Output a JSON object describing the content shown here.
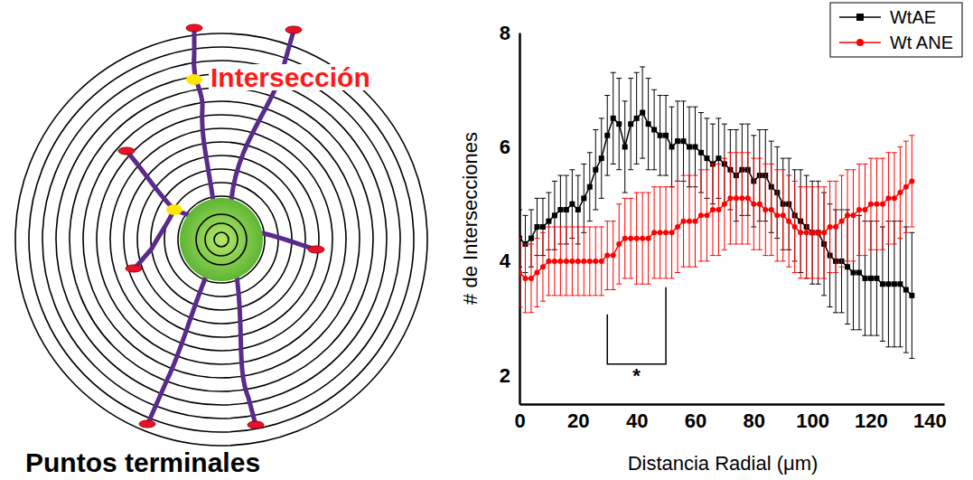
{
  "diagram": {
    "intersection_label": "Intersección",
    "endpoints_label": "Puntos terminales"
  },
  "chart_data": {
    "type": "line",
    "x_label": "Distancia Radial (μm)",
    "y_label": "# de Intersecciones",
    "xlim": [
      0,
      145
    ],
    "xticks": [
      0,
      20,
      40,
      60,
      80,
      100,
      120,
      140
    ],
    "ylim": [
      1.5,
      8
    ],
    "yticks": [
      2,
      4,
      6,
      8
    ],
    "grid": false,
    "legend": "top-right",
    "x": [
      0,
      2,
      4,
      6,
      8,
      10,
      12,
      14,
      16,
      18,
      20,
      22,
      24,
      26,
      28,
      30,
      32,
      34,
      36,
      38,
      40,
      42,
      44,
      46,
      48,
      50,
      52,
      54,
      56,
      58,
      60,
      62,
      64,
      66,
      68,
      70,
      72,
      74,
      76,
      78,
      80,
      82,
      84,
      86,
      88,
      90,
      92,
      94,
      96,
      98,
      100,
      102,
      104,
      106,
      108,
      110,
      112,
      114,
      116,
      118,
      120,
      122,
      124,
      126,
      128,
      130,
      132,
      134
    ],
    "series": [
      {
        "name": "WtAE",
        "color": "#000000",
        "marker": "square",
        "values": [
          4.4,
          4.3,
          4.4,
          4.6,
          4.6,
          4.7,
          4.8,
          4.9,
          4.9,
          5.0,
          4.9,
          5.1,
          5.3,
          5.6,
          5.8,
          6.2,
          6.5,
          6.4,
          6.0,
          6.4,
          6.5,
          6.6,
          6.4,
          6.3,
          6.2,
          6.2,
          6.0,
          6.1,
          6.1,
          6.0,
          6.0,
          5.9,
          5.8,
          5.7,
          5.8,
          5.7,
          5.6,
          5.5,
          5.6,
          5.6,
          5.4,
          5.5,
          5.5,
          5.3,
          5.2,
          5.0,
          5.0,
          4.8,
          4.7,
          4.6,
          4.5,
          4.5,
          4.3,
          4.1,
          4.0,
          4.0,
          3.9,
          3.8,
          3.8,
          3.7,
          3.7,
          3.7,
          3.6,
          3.6,
          3.6,
          3.6,
          3.5,
          3.4
        ],
        "errors": [
          0.5,
          0.5,
          0.5,
          0.5,
          0.5,
          0.5,
          0.6,
          0.6,
          0.6,
          0.6,
          0.6,
          0.6,
          0.6,
          0.7,
          0.7,
          0.7,
          0.8,
          0.8,
          0.8,
          0.8,
          0.8,
          0.8,
          0.8,
          0.7,
          0.7,
          0.7,
          0.7,
          0.7,
          0.7,
          0.7,
          0.7,
          0.7,
          0.7,
          0.7,
          0.7,
          0.7,
          0.7,
          0.8,
          0.8,
          0.8,
          0.8,
          0.8,
          0.8,
          0.8,
          0.8,
          0.8,
          0.8,
          0.8,
          0.9,
          0.9,
          0.9,
          0.9,
          0.9,
          0.9,
          0.9,
          0.9,
          1.0,
          1.0,
          1.0,
          1.0,
          1.0,
          1.0,
          1.0,
          1.1,
          1.1,
          1.1,
          1.1,
          1.1
        ]
      },
      {
        "name": "Wt ANE",
        "color": "#ff0000",
        "marker": "circle",
        "values": [
          3.8,
          3.7,
          3.7,
          3.8,
          3.9,
          4.0,
          4.0,
          4.0,
          4.0,
          4.0,
          4.0,
          4.0,
          4.0,
          4.0,
          4.0,
          4.1,
          4.1,
          4.3,
          4.4,
          4.4,
          4.4,
          4.4,
          4.4,
          4.5,
          4.5,
          4.5,
          4.5,
          4.6,
          4.7,
          4.7,
          4.7,
          4.8,
          4.8,
          4.9,
          4.9,
          5.0,
          5.1,
          5.1,
          5.1,
          5.1,
          5.0,
          5.0,
          4.9,
          4.9,
          4.8,
          4.8,
          4.7,
          4.6,
          4.5,
          4.5,
          4.5,
          4.5,
          4.5,
          4.6,
          4.6,
          4.7,
          4.8,
          4.8,
          4.9,
          4.9,
          5.0,
          5.0,
          5.0,
          5.1,
          5.1,
          5.2,
          5.3,
          5.4
        ],
        "errors": [
          0.6,
          0.6,
          0.6,
          0.6,
          0.6,
          0.6,
          0.6,
          0.6,
          0.6,
          0.6,
          0.6,
          0.6,
          0.6,
          0.6,
          0.6,
          0.6,
          0.6,
          0.7,
          0.7,
          0.7,
          0.8,
          0.8,
          0.8,
          0.8,
          0.8,
          0.8,
          0.8,
          0.8,
          0.8,
          0.8,
          0.8,
          0.8,
          0.8,
          0.8,
          0.8,
          0.8,
          0.8,
          0.8,
          0.8,
          0.8,
          0.8,
          0.8,
          0.8,
          0.8,
          0.8,
          0.8,
          0.8,
          0.8,
          0.8,
          0.8,
          0.8,
          0.8,
          0.8,
          0.8,
          0.8,
          0.8,
          0.8,
          0.8,
          0.8,
          0.8,
          0.8,
          0.8,
          0.8,
          0.8,
          0.8,
          0.8,
          0.8,
          0.8
        ]
      }
    ],
    "annotations": [
      {
        "text": "*",
        "x": [
          30,
          50
        ],
        "y": 2.2
      }
    ]
  }
}
